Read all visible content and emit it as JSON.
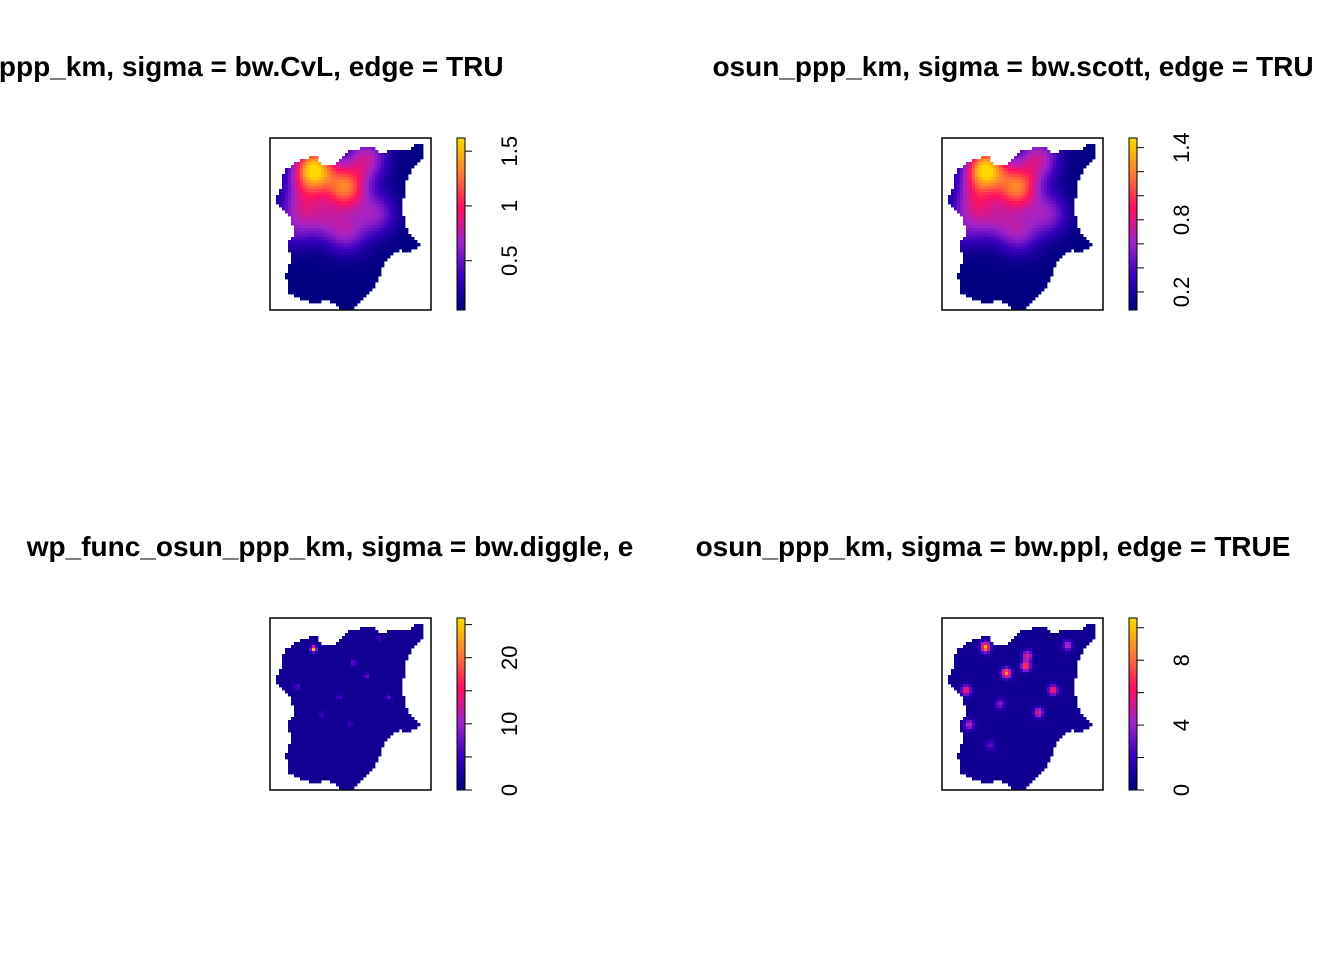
{
  "chart_data": [
    {
      "type": "heatmap",
      "title": "osun_ppp_km, sigma = bw.CvL, edge = TRUE",
      "title_visible": "osun_ppp_km, sigma = bw.CvL, edge = TRU",
      "colorbar": {
        "min": 0.05,
        "max": 1.62,
        "ticks": [
          0.5,
          1,
          1.5
        ],
        "tick_labels": [
          "0.5",
          "1",
          "1.5"
        ],
        "colors": [
          "#000080",
          "#3a00c0",
          "#a023c8",
          "#ff1060",
          "#ff7a30",
          "#ffd700"
        ]
      },
      "hotspots": [
        {
          "x": 0.27,
          "y": 0.18,
          "v": 1.6
        },
        {
          "x": 0.47,
          "y": 0.29,
          "v": 1.2
        },
        {
          "x": 0.6,
          "y": 0.12,
          "v": 0.75
        },
        {
          "x": 0.2,
          "y": 0.36,
          "v": 0.6
        },
        {
          "x": 0.66,
          "y": 0.44,
          "v": 0.6
        },
        {
          "x": 0.48,
          "y": 0.55,
          "v": 0.6
        },
        {
          "x": 0.33,
          "y": 0.47,
          "v": 0.5
        },
        {
          "x": 0.15,
          "y": 0.52,
          "v": 0.45
        }
      ],
      "spread": 0.09,
      "base": 0.05
    },
    {
      "type": "heatmap",
      "title": "osun_ppp_km, sigma = bw.scott, edge = TRUE",
      "title_visible": "osun_ppp_km, sigma = bw.scott, edge = TRU",
      "colorbar": {
        "min": 0.05,
        "max": 1.48,
        "ticks": [
          0.2,
          0.4,
          0.6,
          0.8,
          1.0,
          1.2,
          1.4
        ],
        "tick_labels": [
          "0.2",
          "",
          "",
          "0.8",
          "",
          "",
          "1.4"
        ],
        "colors": [
          "#000080",
          "#3a00c0",
          "#a023c8",
          "#ff1060",
          "#ff7a30",
          "#ffd700"
        ]
      },
      "hotspots": [
        {
          "x": 0.27,
          "y": 0.18,
          "v": 1.45
        },
        {
          "x": 0.47,
          "y": 0.29,
          "v": 1.1
        },
        {
          "x": 0.6,
          "y": 0.12,
          "v": 0.7
        },
        {
          "x": 0.2,
          "y": 0.36,
          "v": 0.6
        },
        {
          "x": 0.66,
          "y": 0.44,
          "v": 0.55
        },
        {
          "x": 0.48,
          "y": 0.55,
          "v": 0.55
        },
        {
          "x": 0.33,
          "y": 0.47,
          "v": 0.45
        },
        {
          "x": 0.15,
          "y": 0.52,
          "v": 0.4
        }
      ],
      "spread": 0.09,
      "base": 0.05
    },
    {
      "type": "heatmap",
      "title": "wp_func_osun_ppp_km, sigma = bw.diggle, edge = TRUE",
      "title_visible": "wp_func_osun_ppp_km, sigma = bw.diggle, e",
      "colorbar": {
        "min": 0,
        "max": 26,
        "ticks": [
          0,
          5,
          10,
          15,
          20,
          25
        ],
        "tick_labels": [
          "0",
          "",
          "10",
          "",
          "20",
          ""
        ],
        "colors": [
          "#000080",
          "#3a00c0",
          "#a023c8",
          "#ff1060",
          "#ff7a30",
          "#ffd700"
        ]
      },
      "hotspots": [
        {
          "x": 0.27,
          "y": 0.18,
          "v": 25
        },
        {
          "x": 0.17,
          "y": 0.4,
          "v": 8
        },
        {
          "x": 0.52,
          "y": 0.26,
          "v": 9
        },
        {
          "x": 0.6,
          "y": 0.34,
          "v": 8
        },
        {
          "x": 0.43,
          "y": 0.46,
          "v": 7
        },
        {
          "x": 0.74,
          "y": 0.46,
          "v": 7
        },
        {
          "x": 0.32,
          "y": 0.56,
          "v": 6
        },
        {
          "x": 0.5,
          "y": 0.62,
          "v": 6
        },
        {
          "x": 0.68,
          "y": 0.12,
          "v": 6
        }
      ],
      "spread": 0.012,
      "base": 1.5
    },
    {
      "type": "heatmap",
      "title": "osun_ppp_km, sigma = bw.ppl, edge = TRUE",
      "title_visible": "osun_ppp_km, sigma = bw.ppl, edge = TRUE",
      "colorbar": {
        "min": 0,
        "max": 10.6,
        "ticks": [
          0,
          2,
          4,
          6,
          8,
          10
        ],
        "tick_labels": [
          "0",
          "",
          "4",
          "",
          "8",
          ""
        ],
        "colors": [
          "#000080",
          "#3a00c0",
          "#a023c8",
          "#ff1060",
          "#ff7a30",
          "#ffd700"
        ]
      },
      "hotspots": [
        {
          "x": 0.27,
          "y": 0.17,
          "v": 10
        },
        {
          "x": 0.4,
          "y": 0.32,
          "v": 9
        },
        {
          "x": 0.52,
          "y": 0.28,
          "v": 8
        },
        {
          "x": 0.15,
          "y": 0.42,
          "v": 7
        },
        {
          "x": 0.69,
          "y": 0.42,
          "v": 7
        },
        {
          "x": 0.53,
          "y": 0.22,
          "v": 6
        },
        {
          "x": 0.6,
          "y": 0.55,
          "v": 6
        },
        {
          "x": 0.17,
          "y": 0.62,
          "v": 5
        },
        {
          "x": 0.78,
          "y": 0.16,
          "v": 5
        },
        {
          "x": 0.36,
          "y": 0.5,
          "v": 4
        },
        {
          "x": 0.3,
          "y": 0.74,
          "v": 3
        }
      ],
      "spread": 0.02,
      "base": 0.6
    }
  ],
  "colors": {
    "frame": "#000000",
    "background": "#ffffff"
  }
}
